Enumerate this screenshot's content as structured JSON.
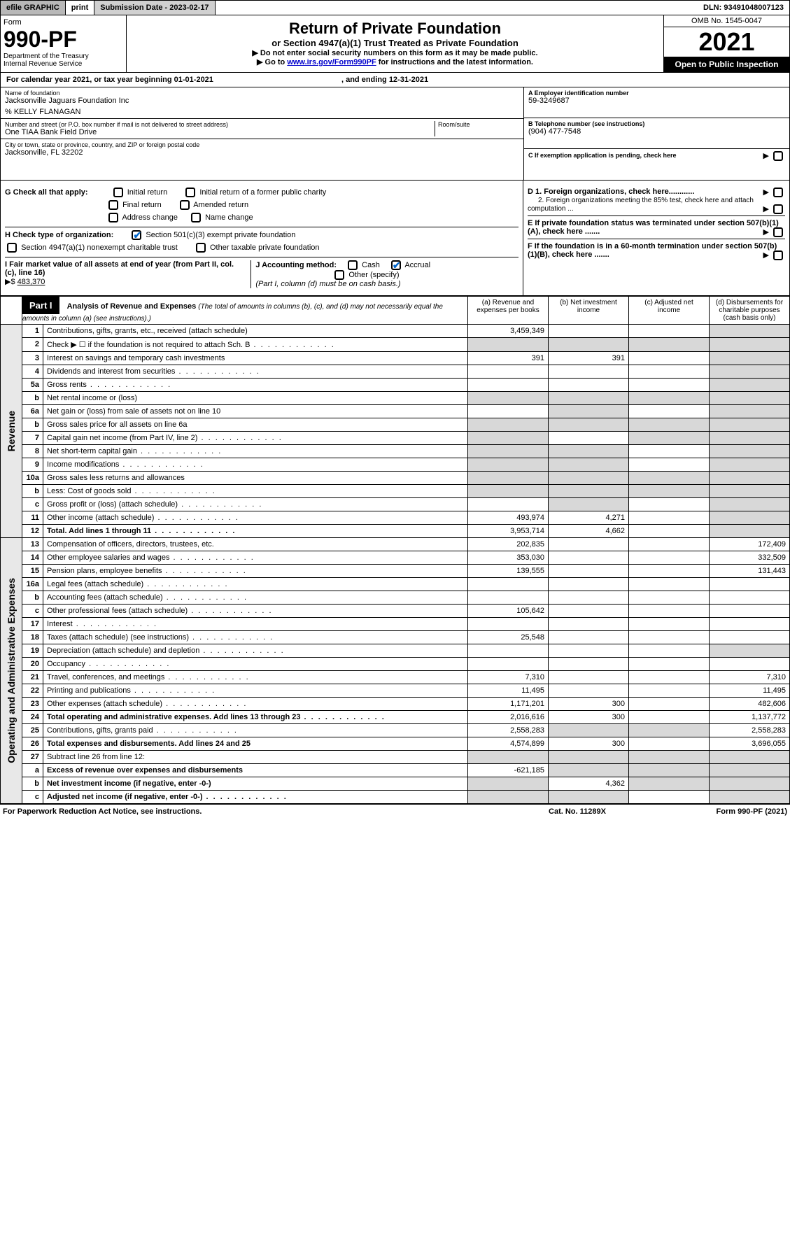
{
  "topbar": {
    "efile": "efile GRAPHIC",
    "print": "print",
    "submission_label": "Submission Date - ",
    "submission_date": "2023-02-17",
    "dln_label": "DLN: ",
    "dln": "93491048007123"
  },
  "header": {
    "form_label": "Form",
    "form_number": "990-PF",
    "dept1": "Department of the Treasury",
    "dept2": "Internal Revenue Service",
    "title": "Return of Private Foundation",
    "subtitle": "or Section 4947(a)(1) Trust Treated as Private Foundation",
    "note1": "▶ Do not enter social security numbers on this form as it may be made public.",
    "note2_pre": "▶ Go to ",
    "note2_link": "www.irs.gov/Form990PF",
    "note2_post": " for instructions and the latest information.",
    "omb": "OMB No. 1545-0047",
    "year": "2021",
    "open": "Open to Public Inspection"
  },
  "calendar": {
    "text": "For calendar year 2021, or tax year beginning 01-01-2021",
    "ending": ", and ending 12-31-2021"
  },
  "identity": {
    "name_lbl": "Name of foundation",
    "name": "Jacksonville Jaguars Foundation Inc",
    "care_of": "% KELLY FLANAGAN",
    "addr_lbl": "Number and street (or P.O. box number if mail is not delivered to street address)",
    "addr": "One TIAA Bank Field Drive",
    "room_lbl": "Room/suite",
    "room": "",
    "city_lbl": "City or town, state or province, country, and ZIP or foreign postal code",
    "city": "Jacksonville, FL  32202",
    "ein_lbl": "A Employer identification number",
    "ein": "59-3249687",
    "phone_lbl": "B Telephone number (see instructions)",
    "phone": "(904) 477-7548",
    "c_lbl": "C If exemption application is pending, check here"
  },
  "checks": {
    "g_label": "G Check all that apply:",
    "g_opts": [
      "Initial return",
      "Initial return of a former public charity",
      "Final return",
      "Amended return",
      "Address change",
      "Name change"
    ],
    "h_label": "H Check type of organization:",
    "h1": "Section 501(c)(3) exempt private foundation",
    "h2": "Section 4947(a)(1) nonexempt charitable trust",
    "h3": "Other taxable private foundation",
    "i_label": "I Fair market value of all assets at end of year (from Part II, col. (c), line 16)",
    "i_arrow": "▶$",
    "i_value": "483,370",
    "j_label": "J Accounting method:",
    "j_cash": "Cash",
    "j_accrual": "Accrual",
    "j_other": "Other (specify)",
    "j_note": "(Part I, column (d) must be on cash basis.)",
    "d1": "D 1. Foreign organizations, check here............",
    "d2": "2. Foreign organizations meeting the 85% test, check here and attach computation ...",
    "e": "E  If private foundation status was terminated under section 507(b)(1)(A), check here .......",
    "f": "F  If the foundation is in a 60-month termination under section 507(b)(1)(B), check here .......",
    "arrow": "▶"
  },
  "part1": {
    "label": "Part I",
    "title": "Analysis of Revenue and Expenses",
    "note": "(The total of amounts in columns (b), (c), and (d) may not necessarily equal the amounts in column (a) (see instructions).)",
    "col_a": "(a)  Revenue and expenses per books",
    "col_b": "(b)  Net investment income",
    "col_c": "(c)  Adjusted net income",
    "col_d": "(d)  Disbursements for charitable purposes (cash basis only)"
  },
  "side_labels": {
    "revenue": "Revenue",
    "expenses": "Operating and Administrative Expenses"
  },
  "rows": [
    {
      "n": "1",
      "desc": "Contributions, gifts, grants, etc., received (attach schedule)",
      "a": "3,459,349",
      "b": "",
      "c": "",
      "d": "",
      "d_gray": true
    },
    {
      "n": "2",
      "desc": "Check ▶ ☐ if the foundation is not required to attach Sch. B",
      "a": "",
      "b": "",
      "c": "",
      "d": "",
      "a_gray": true,
      "b_gray": true,
      "c_gray": true,
      "d_gray": true,
      "dots": true
    },
    {
      "n": "3",
      "desc": "Interest on savings and temporary cash investments",
      "a": "391",
      "b": "391",
      "c": "",
      "d": "",
      "d_gray": true
    },
    {
      "n": "4",
      "desc": "Dividends and interest from securities",
      "a": "",
      "b": "",
      "c": "",
      "d": "",
      "d_gray": true,
      "dots": true
    },
    {
      "n": "5a",
      "desc": "Gross rents",
      "a": "",
      "b": "",
      "c": "",
      "d": "",
      "d_gray": true,
      "dots": true
    },
    {
      "n": "b",
      "desc": "Net rental income or (loss)",
      "a": "",
      "b": "",
      "c": "",
      "d": "",
      "a_gray": true,
      "b_gray": true,
      "c_gray": true,
      "d_gray": true
    },
    {
      "n": "6a",
      "desc": "Net gain or (loss) from sale of assets not on line 10",
      "a": "",
      "b": "",
      "c": "",
      "d": "",
      "b_gray": true,
      "d_gray": true
    },
    {
      "n": "b",
      "desc": "Gross sales price for all assets on line 6a",
      "a": "",
      "b": "",
      "c": "",
      "d": "",
      "a_gray": true,
      "b_gray": true,
      "c_gray": true,
      "d_gray": true
    },
    {
      "n": "7",
      "desc": "Capital gain net income (from Part IV, line 2)",
      "a": "",
      "b": "",
      "c": "",
      "d": "",
      "a_gray": true,
      "c_gray": true,
      "d_gray": true,
      "dots": true
    },
    {
      "n": "8",
      "desc": "Net short-term capital gain",
      "a": "",
      "b": "",
      "c": "",
      "d": "",
      "a_gray": true,
      "b_gray": true,
      "d_gray": true,
      "dots": true
    },
    {
      "n": "9",
      "desc": "Income modifications",
      "a": "",
      "b": "",
      "c": "",
      "d": "",
      "a_gray": true,
      "b_gray": true,
      "d_gray": true,
      "dots": true
    },
    {
      "n": "10a",
      "desc": "Gross sales less returns and allowances",
      "a": "",
      "b": "",
      "c": "",
      "d": "",
      "a_gray": true,
      "b_gray": true,
      "c_gray": true,
      "d_gray": true
    },
    {
      "n": "b",
      "desc": "Less: Cost of goods sold",
      "a": "",
      "b": "",
      "c": "",
      "d": "",
      "a_gray": true,
      "b_gray": true,
      "c_gray": true,
      "d_gray": true,
      "dots": true
    },
    {
      "n": "c",
      "desc": "Gross profit or (loss) (attach schedule)",
      "a": "",
      "b": "",
      "c": "",
      "d": "",
      "b_gray": true,
      "d_gray": true,
      "dots": true
    },
    {
      "n": "11",
      "desc": "Other income (attach schedule)",
      "a": "493,974",
      "b": "4,271",
      "c": "",
      "d": "",
      "d_gray": true,
      "dots": true
    },
    {
      "n": "12",
      "desc": "Total. Add lines 1 through 11",
      "a": "3,953,714",
      "b": "4,662",
      "c": "",
      "d": "",
      "d_gray": true,
      "bold": true,
      "dots": true
    },
    {
      "n": "13",
      "desc": "Compensation of officers, directors, trustees, etc.",
      "a": "202,835",
      "b": "",
      "c": "",
      "d": "172,409"
    },
    {
      "n": "14",
      "desc": "Other employee salaries and wages",
      "a": "353,030",
      "b": "",
      "c": "",
      "d": "332,509",
      "dots": true
    },
    {
      "n": "15",
      "desc": "Pension plans, employee benefits",
      "a": "139,555",
      "b": "",
      "c": "",
      "d": "131,443",
      "dots": true
    },
    {
      "n": "16a",
      "desc": "Legal fees (attach schedule)",
      "a": "",
      "b": "",
      "c": "",
      "d": "",
      "dots": true
    },
    {
      "n": "b",
      "desc": "Accounting fees (attach schedule)",
      "a": "",
      "b": "",
      "c": "",
      "d": "",
      "dots": true
    },
    {
      "n": "c",
      "desc": "Other professional fees (attach schedule)",
      "a": "105,642",
      "b": "",
      "c": "",
      "d": "",
      "dots": true
    },
    {
      "n": "17",
      "desc": "Interest",
      "a": "",
      "b": "",
      "c": "",
      "d": "",
      "dots": true
    },
    {
      "n": "18",
      "desc": "Taxes (attach schedule) (see instructions)",
      "a": "25,548",
      "b": "",
      "c": "",
      "d": "",
      "dots": true
    },
    {
      "n": "19",
      "desc": "Depreciation (attach schedule) and depletion",
      "a": "",
      "b": "",
      "c": "",
      "d": "",
      "d_gray": true,
      "dots": true
    },
    {
      "n": "20",
      "desc": "Occupancy",
      "a": "",
      "b": "",
      "c": "",
      "d": "",
      "dots": true
    },
    {
      "n": "21",
      "desc": "Travel, conferences, and meetings",
      "a": "7,310",
      "b": "",
      "c": "",
      "d": "7,310",
      "dots": true
    },
    {
      "n": "22",
      "desc": "Printing and publications",
      "a": "11,495",
      "b": "",
      "c": "",
      "d": "11,495",
      "dots": true
    },
    {
      "n": "23",
      "desc": "Other expenses (attach schedule)",
      "a": "1,171,201",
      "b": "300",
      "c": "",
      "d": "482,606",
      "dots": true
    },
    {
      "n": "24",
      "desc": "Total operating and administrative expenses. Add lines 13 through 23",
      "a": "2,016,616",
      "b": "300",
      "c": "",
      "d": "1,137,772",
      "bold": true,
      "dots": true
    },
    {
      "n": "25",
      "desc": "Contributions, gifts, grants paid",
      "a": "2,558,283",
      "b": "",
      "c": "",
      "d": "2,558,283",
      "b_gray": true,
      "c_gray": true,
      "dots": true
    },
    {
      "n": "26",
      "desc": "Total expenses and disbursements. Add lines 24 and 25",
      "a": "4,574,899",
      "b": "300",
      "c": "",
      "d": "3,696,055",
      "bold": true
    },
    {
      "n": "27",
      "desc": "Subtract line 26 from line 12:",
      "a": "",
      "b": "",
      "c": "",
      "d": "",
      "a_gray": true,
      "b_gray": true,
      "c_gray": true,
      "d_gray": true
    },
    {
      "n": "a",
      "desc": "Excess of revenue over expenses and disbursements",
      "a": "-621,185",
      "b": "",
      "c": "",
      "d": "",
      "b_gray": true,
      "c_gray": true,
      "d_gray": true,
      "bold": true
    },
    {
      "n": "b",
      "desc": "Net investment income (if negative, enter -0-)",
      "a": "",
      "b": "4,362",
      "c": "",
      "d": "",
      "a_gray": true,
      "c_gray": true,
      "d_gray": true,
      "bold": true
    },
    {
      "n": "c",
      "desc": "Adjusted net income (if negative, enter -0-)",
      "a": "",
      "b": "",
      "c": "",
      "d": "",
      "a_gray": true,
      "b_gray": true,
      "d_gray": true,
      "bold": true,
      "dots": true
    }
  ],
  "footer": {
    "left": "For Paperwork Reduction Act Notice, see instructions.",
    "mid": "Cat. No. 11289X",
    "right": "Form 990-PF (2021)"
  }
}
